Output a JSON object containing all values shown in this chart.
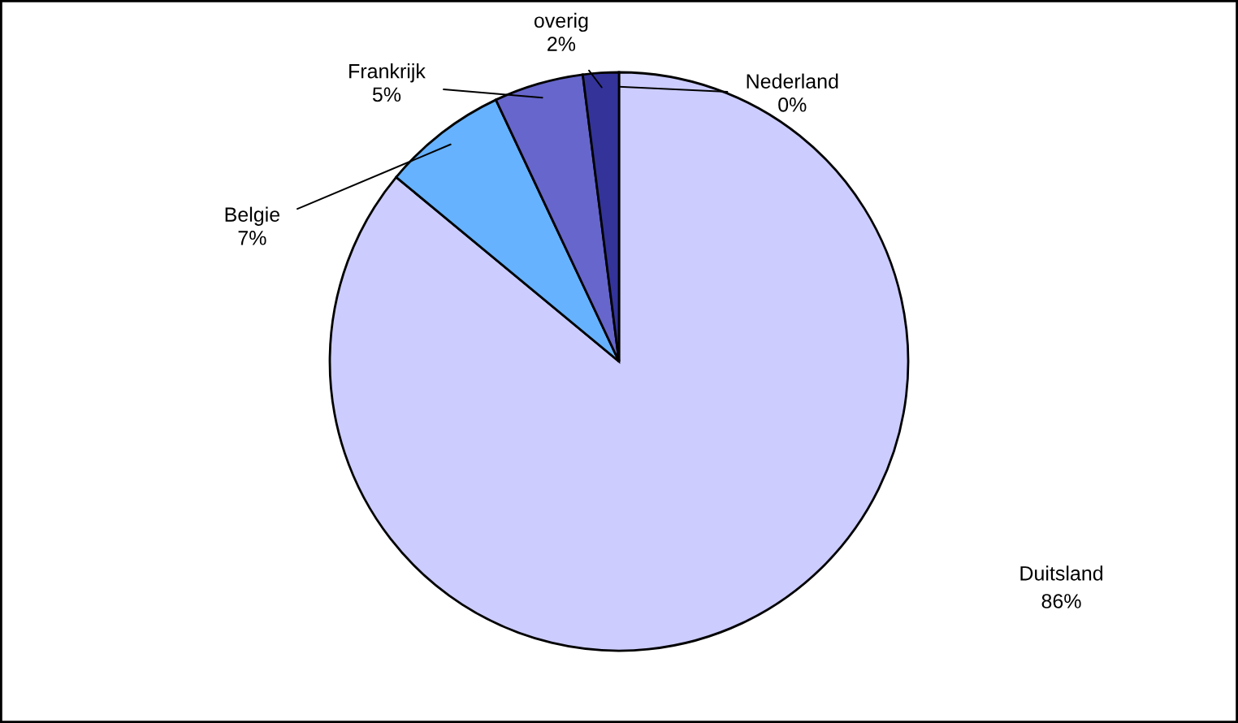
{
  "chart_data": {
    "type": "pie",
    "categories": [
      "Nederland",
      "Duitsland",
      "Belgie",
      "Frankrijk",
      "overig"
    ],
    "values": [
      0,
      86,
      7,
      5,
      2
    ],
    "value_labels": [
      "0%",
      "86%",
      "7%",
      "5%",
      "2%"
    ],
    "colors": [
      "#3333cc",
      "#ccccff",
      "#66b2ff",
      "#6666cc",
      "#333399"
    ],
    "legend": false
  }
}
